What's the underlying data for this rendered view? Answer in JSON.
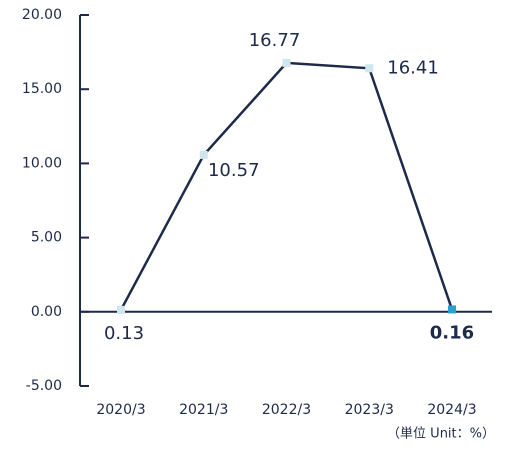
{
  "chart_data": {
    "type": "line",
    "categories": [
      "2020/3",
      "2021/3",
      "2022/3",
      "2023/3",
      "2024/3"
    ],
    "series": [
      {
        "color": "#1e2a4a",
        "values": [
          0.13,
          10.57,
          16.77,
          16.41,
          0.16
        ]
      }
    ],
    "marker_colors": [
      "#cfe6ee",
      "#cfe6ee",
      "#cfe6ee",
      "#cfe6ee",
      "#2a9fd0"
    ],
    "ylim": [
      -5,
      20
    ],
    "yticks": [
      {
        "value": -5,
        "label": "-5.00"
      },
      {
        "value": 0,
        "label": "0.00"
      },
      {
        "value": 5,
        "label": "5.00"
      },
      {
        "value": 10,
        "label": "10.00"
      },
      {
        "value": 15,
        "label": "15.00"
      },
      {
        "value": 20,
        "label": "20.00"
      }
    ],
    "unit_note": "（単位 Unit：%）"
  }
}
